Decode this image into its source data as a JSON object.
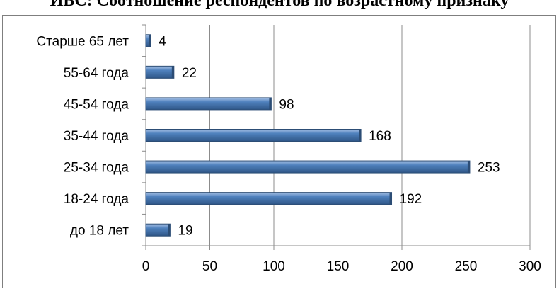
{
  "title": "ИВС: Соотношение респондентов по возрастному признаку",
  "chart_data": {
    "type": "bar",
    "orientation": "horizontal",
    "title": "ИВС: Соотношение респондентов по возрастному признаку",
    "categories": [
      "до 18 лет",
      "18-24 года",
      "25-34 года",
      "35-44 года",
      "45-54 года",
      "55-64 года",
      "Старше 65 лет"
    ],
    "values": [
      19,
      192,
      253,
      168,
      98,
      22,
      4
    ],
    "xlabel": "",
    "ylabel": "",
    "xlim": [
      0,
      300
    ],
    "x_ticks": [
      "0",
      "50",
      "100",
      "150",
      "200",
      "250",
      "300"
    ],
    "grid": "vertical",
    "data_labels": true,
    "bar_color": "#4f81bd",
    "bar_edge_color": "#2c4d75"
  }
}
